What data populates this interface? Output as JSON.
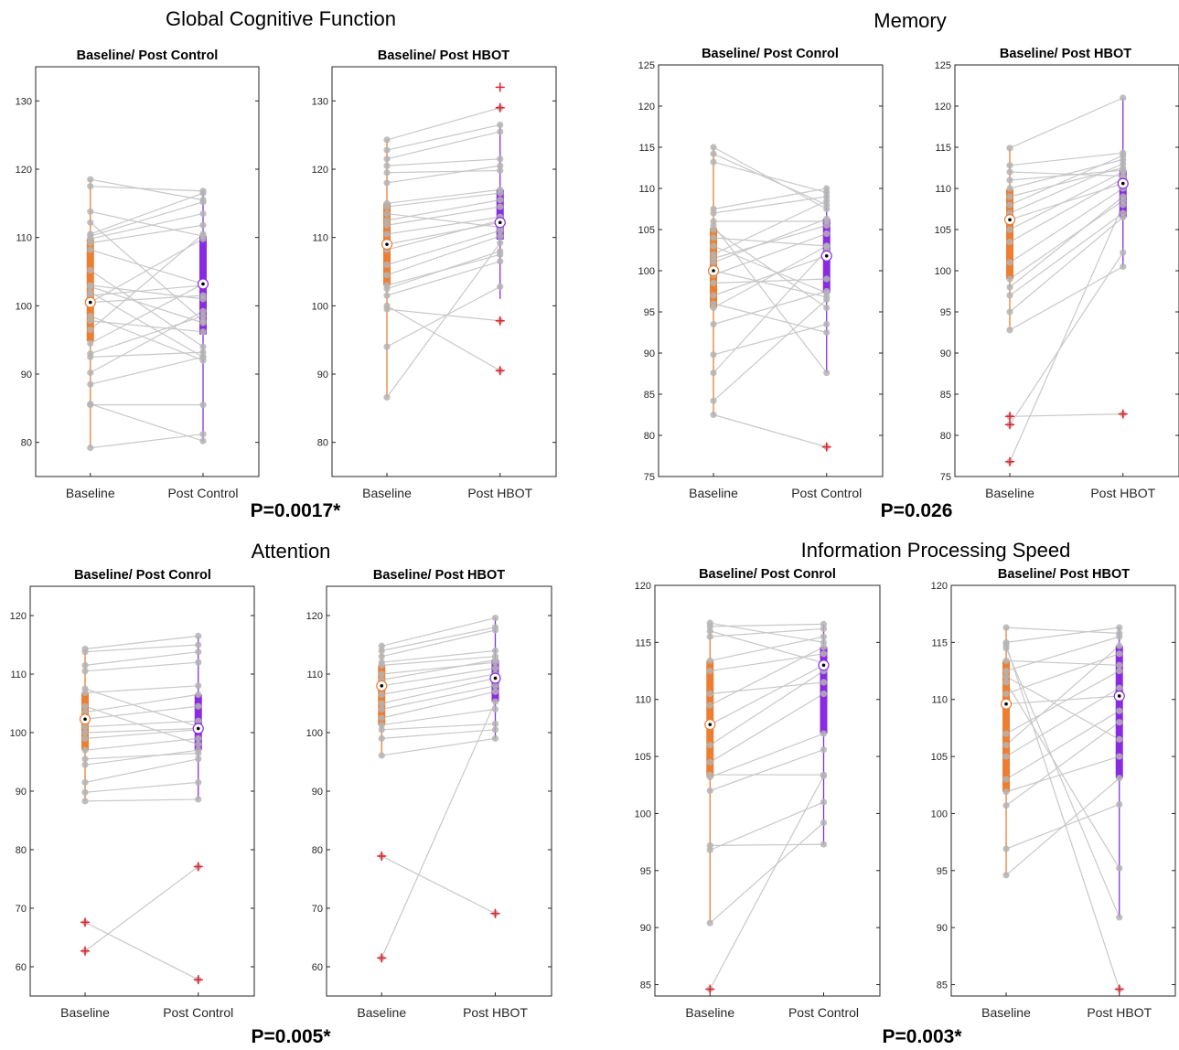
{
  "colors": {
    "baseline": "#ED7D31",
    "post": "#8A2BE2",
    "pair_line": "#C8C8C8",
    "point": "#B4B4B4",
    "outlier": "#E8212B",
    "axis": "#262626"
  },
  "chart_data": [
    {
      "type": "paired-boxplot",
      "title": "Global Cognitive Function",
      "p_value": "P=0.0017*",
      "panels": [
        {
          "subtitle": "Baseline/ Post Control",
          "categories": [
            "Baseline",
            "Post Control"
          ],
          "ylim": [
            75,
            135
          ],
          "yticks": [
            80,
            90,
            100,
            110,
            120,
            130
          ],
          "box": [
            {
              "whisker_low": 79.2,
              "q1": 94.8,
              "median": 100.5,
              "q3": 109.8,
              "whisker_high": 118.5
            },
            {
              "whisker_low": 80.2,
              "q1": 95.8,
              "median": 103.2,
              "q3": 110.2,
              "whisker_high": 116.8
            }
          ],
          "outliers": [
            [],
            []
          ],
          "pairs": [
            [
              79.2,
              81.2
            ],
            [
              85.5,
              85.5
            ],
            [
              85.6,
              80.2
            ],
            [
              88.5,
              92.5
            ],
            [
              90.2,
              99.2
            ],
            [
              92.5,
              93.2
            ],
            [
              93,
              98.5
            ],
            [
              94.5,
              103.2
            ],
            [
              96.5,
              110.5
            ],
            [
              97.8,
              96.2
            ],
            [
              98.5,
              92
            ],
            [
              100.5,
              101.5
            ],
            [
              101.5,
              103
            ],
            [
              102.8,
              97.5
            ],
            [
              103,
              101
            ],
            [
              105.2,
              94
            ],
            [
              108.2,
              103.2
            ],
            [
              109.2,
              111.8
            ],
            [
              109.8,
              113.5
            ],
            [
              110.2,
              115.2
            ],
            [
              110.5,
              116.5
            ],
            [
              112.2,
              97.8
            ],
            [
              113.8,
              110.2
            ],
            [
              117.5,
              116.8
            ],
            [
              118.5,
              115.5
            ],
            [
              100.5,
              109.8
            ],
            [
              102,
              92.5
            ]
          ]
        },
        {
          "subtitle": "Baseline/ Post HBOT",
          "categories": [
            "Baseline",
            "Post HBOT"
          ],
          "ylim": [
            75,
            135
          ],
          "yticks": [
            80,
            90,
            100,
            110,
            120,
            130
          ],
          "box": [
            {
              "whisker_low": 86.6,
              "q1": 103.0,
              "median": 109.0,
              "q3": 115.0,
              "whisker_high": 124.3
            },
            {
              "whisker_low": 101.0,
              "q1": 109.7,
              "median": 112.2,
              "q3": 117.0,
              "whisker_high": 126.5
            }
          ],
          "outliers": [
            [],
            [
              90.5,
              97.8,
              129,
              132
            ]
          ],
          "pairs": [
            [
              86.6,
              109.2
            ],
            [
              94,
              102.8
            ],
            [
              99.5,
              97.8
            ],
            [
              100,
              90.5
            ],
            [
              101.5,
              106.5
            ],
            [
              102.5,
              108
            ],
            [
              103,
              107.5
            ],
            [
              104.5,
              110.2
            ],
            [
              106,
              111
            ],
            [
              108.2,
              112.5
            ],
            [
              109,
              112.2
            ],
            [
              110.5,
              113
            ],
            [
              111.8,
              114.5
            ],
            [
              112.5,
              115.5
            ],
            [
              113.5,
              111.5
            ],
            [
              114.5,
              116.5
            ],
            [
              115,
              117
            ],
            [
              118,
              120.5
            ],
            [
              119.5,
              119.8
            ],
            [
              120.5,
              121.5
            ],
            [
              121.5,
              125.5
            ],
            [
              122.8,
              126.5
            ],
            [
              124.3,
              129
            ]
          ]
        }
      ]
    },
    {
      "type": "paired-boxplot",
      "title": "Memory",
      "p_value": "P=0.026",
      "panels": [
        {
          "subtitle": "Baseline/ Post Conrol",
          "categories": [
            "Baseline",
            "Post Control"
          ],
          "ylim": [
            75,
            125
          ],
          "yticks": [
            75,
            80,
            85,
            90,
            95,
            100,
            105,
            110,
            115,
            120,
            125
          ],
          "box": [
            {
              "whisker_low": 82.5,
              "q1": 95.5,
              "median": 100.0,
              "q3": 105.2,
              "whisker_high": 115.0
            },
            {
              "whisker_low": 87.6,
              "q1": 97.3,
              "median": 101.8,
              "q3": 106.3,
              "whisker_high": 110.0
            }
          ],
          "outliers": [
            [],
            [
              78.6
            ]
          ],
          "pairs": [
            [
              82.5,
              78.6
            ],
            [
              84.2,
              96.5
            ],
            [
              87.6,
              102.5
            ],
            [
              89.8,
              93.5
            ],
            [
              93.5,
              97.5
            ],
            [
              95.5,
              103
            ],
            [
              96,
              92.5
            ],
            [
              97,
              101.8
            ],
            [
              98.5,
              99
            ],
            [
              99.5,
              104.5
            ],
            [
              100,
              96.8
            ],
            [
              101,
              106.3
            ],
            [
              101.5,
              105.5
            ],
            [
              102,
              108.5
            ],
            [
              103,
              97.3
            ],
            [
              104,
              103
            ],
            [
              105,
              95.5
            ],
            [
              105.5,
              87.6
            ],
            [
              106,
              106
            ],
            [
              107,
              109
            ],
            [
              107.5,
              110
            ],
            [
              113.2,
              109.5
            ],
            [
              114.2,
              108
            ],
            [
              115,
              107.5
            ]
          ]
        },
        {
          "subtitle": "Baseline/ Post HBOT",
          "categories": [
            "Baseline",
            "Post HBOT"
          ],
          "ylim": [
            75,
            125
          ],
          "yticks": [
            75,
            80,
            85,
            90,
            95,
            100,
            105,
            110,
            115,
            120,
            125
          ],
          "box": [
            {
              "whisker_low": 92.8,
              "q1": 99.0,
              "median": 106.2,
              "q3": 109.9,
              "whisker_high": 114.9
            },
            {
              "whisker_low": 100.5,
              "q1": 106.5,
              "median": 110.6,
              "q3": 112.2,
              "whisker_high": 121.0
            }
          ],
          "outliers": [
            [
              76.8,
              81.3,
              82.3
            ],
            [
              82.6
            ]
          ],
          "pairs": [
            [
              76.8,
              108
            ],
            [
              81.3,
              102.2
            ],
            [
              82.3,
              82.6
            ],
            [
              92.8,
              100.5
            ],
            [
              95,
              106.5
            ],
            [
              97,
              107
            ],
            [
              98,
              109
            ],
            [
              99,
              108.5
            ],
            [
              101,
              110
            ],
            [
              103.5,
              111.2
            ],
            [
              105,
              112
            ],
            [
              106.2,
              110.6
            ],
            [
              107,
              113
            ],
            [
              108,
              114
            ],
            [
              109,
              112.5
            ],
            [
              110,
              113.5
            ],
            [
              111,
              112.2
            ],
            [
              112,
              111.5
            ],
            [
              112.8,
              114.3
            ],
            [
              114.9,
              121
            ]
          ]
        }
      ]
    },
    {
      "type": "paired-boxplot",
      "title": "Attention",
      "p_value": "P=0.005*",
      "panels": [
        {
          "subtitle": "Baseline/ Post Conrol",
          "categories": [
            "Baseline",
            "Post Control"
          ],
          "ylim": [
            55,
            125
          ],
          "yticks": [
            60,
            70,
            80,
            90,
            100,
            110,
            120
          ],
          "box": [
            {
              "whisker_low": 88.3,
              "q1": 97.0,
              "median": 102.3,
              "q3": 106.8,
              "whisker_high": 114.3
            },
            {
              "whisker_low": 88.6,
              "q1": 97.0,
              "median": 100.7,
              "q3": 106.5,
              "whisker_high": 116.5
            }
          ],
          "outliers": [
            [
              62.7,
              67.6
            ],
            [
              57.8,
              77.1
            ]
          ],
          "pairs": [
            [
              62.7,
              77.1
            ],
            [
              67.6,
              57.8
            ],
            [
              88.3,
              88.6
            ],
            [
              89.8,
              91.5
            ],
            [
              91.5,
              95.5
            ],
            [
              94.5,
              97
            ],
            [
              95.5,
              96.5
            ],
            [
              97,
              99
            ],
            [
              99,
              100.5
            ],
            [
              100,
              100.7
            ],
            [
              101,
              102
            ],
            [
              102.3,
              104.5
            ],
            [
              103.5,
              106.5
            ],
            [
              104.5,
              98
            ],
            [
              106.8,
              108
            ],
            [
              107.5,
              101
            ],
            [
              110.5,
              112
            ],
            [
              111.5,
              113.8
            ],
            [
              113.8,
              115
            ],
            [
              114.3,
              116.5
            ]
          ]
        },
        {
          "subtitle": "Baseline/ Post HBOT",
          "categories": [
            "Baseline",
            "Post HBOT"
          ],
          "ylim": [
            55,
            125
          ],
          "yticks": [
            60,
            70,
            80,
            90,
            100,
            110,
            120
          ],
          "box": [
            {
              "whisker_low": 96.1,
              "q1": 101.3,
              "median": 108.0,
              "q3": 111.5,
              "whisker_high": 114.8
            },
            {
              "whisker_low": 99.0,
              "q1": 105.3,
              "median": 109.3,
              "q3": 112.4,
              "whisker_high": 119.6
            }
          ],
          "outliers": [
            [
              61.5,
              78.9
            ],
            [
              69.1
            ]
          ],
          "pairs": [
            [
              61.5,
              105.3
            ],
            [
              78.9,
              69.1
            ],
            [
              96.1,
              99
            ],
            [
              99,
              100.5
            ],
            [
              100.5,
              101.5
            ],
            [
              101.3,
              104
            ],
            [
              102.5,
              107
            ],
            [
              104,
              108
            ],
            [
              105,
              109.3
            ],
            [
              106.5,
              110
            ],
            [
              108,
              111
            ],
            [
              109,
              112.4
            ],
            [
              110,
              112
            ],
            [
              111.5,
              113
            ],
            [
              112,
              114
            ],
            [
              113,
              117.5
            ],
            [
              114,
              118
            ],
            [
              114.8,
              119.6
            ]
          ]
        }
      ]
    },
    {
      "type": "paired-boxplot",
      "title": "Information Processing Speed",
      "p_value": "P=0.003*",
      "panels": [
        {
          "subtitle": "Baseline/ Post Conrol",
          "categories": [
            "Baseline",
            "Post Control"
          ],
          "ylim": [
            84,
            120
          ],
          "yticks": [
            85,
            90,
            95,
            100,
            105,
            110,
            115,
            120
          ],
          "box": [
            {
              "whisker_low": 90.4,
              "q1": 103.2,
              "median": 107.8,
              "q3": 113.4,
              "whisker_high": 116.7
            },
            {
              "whisker_low": 97.3,
              "q1": 107.0,
              "median": 113.0,
              "q3": 114.6,
              "whisker_high": 116.6
            }
          ],
          "outliers": [
            [
              84.6
            ],
            []
          ],
          "pairs": [
            [
              84.6,
              103.3
            ],
            [
              90.4,
              99.2
            ],
            [
              96.8,
              101
            ],
            [
              97.2,
              97.3
            ],
            [
              102,
              105.6
            ],
            [
              103.2,
              107
            ],
            [
              103.4,
              103.4
            ],
            [
              104.5,
              110.5
            ],
            [
              106,
              112.5
            ],
            [
              107.8,
              113
            ],
            [
              109.5,
              114.6
            ],
            [
              110.5,
              111.5
            ],
            [
              112.5,
              114
            ],
            [
              113.4,
              115.5
            ],
            [
              115.5,
              116.2
            ],
            [
              116,
              113.2
            ],
            [
              116.4,
              116.6
            ],
            [
              116.7,
              115
            ]
          ]
        },
        {
          "subtitle": "Baseline/ Post HBOT",
          "categories": [
            "Baseline",
            "Post HBOT"
          ],
          "ylim": [
            84,
            120
          ],
          "yticks": [
            85,
            90,
            95,
            100,
            105,
            110,
            115,
            120
          ],
          "box": [
            {
              "whisker_low": 94.6,
              "q1": 101.9,
              "median": 109.6,
              "q3": 113.4,
              "whisker_high": 116.3
            },
            {
              "whisker_low": 90.9,
              "q1": 103.1,
              "median": 110.3,
              "q3": 114.7,
              "whisker_high": 116.3
            }
          ],
          "outliers": [
            [],
            [
              84.6
            ]
          ],
          "pairs": [
            [
              94.6,
              103.1
            ],
            [
              96.9,
              100.8
            ],
            [
              100.7,
              108
            ],
            [
              101.9,
              105
            ],
            [
              103,
              109
            ],
            [
              105,
              111
            ],
            [
              107,
              112.5
            ],
            [
              109.6,
              110.3
            ],
            [
              110.5,
              114
            ],
            [
              111.5,
              95.2
            ],
            [
              112.5,
              115.5
            ],
            [
              113.4,
              113
            ],
            [
              114.5,
              90.9
            ],
            [
              114.8,
              84.6
            ],
            [
              115,
              116.3
            ],
            [
              116.3,
              115.8
            ],
            [
              112,
              106.5
            ],
            [
              106,
              114.7
            ]
          ]
        }
      ]
    }
  ]
}
